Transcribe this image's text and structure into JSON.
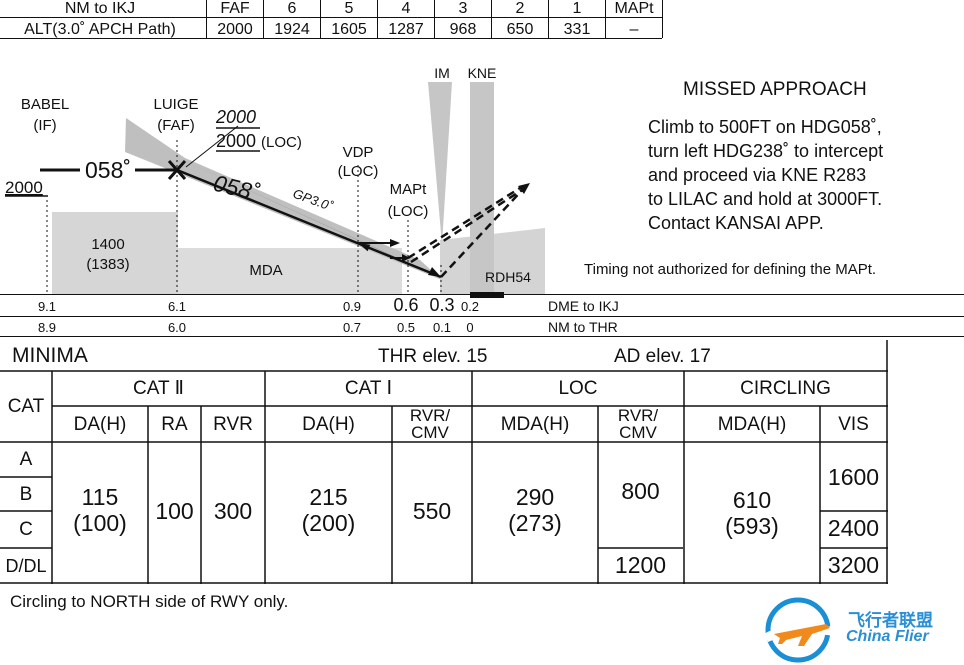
{
  "altitude_table": {
    "row1_label": "NM to IKJ",
    "row2_label": "ALT(3.0˚ APCH Path)",
    "columns": [
      {
        "head": "FAF",
        "alt": "2000"
      },
      {
        "head": "6",
        "alt": "1924"
      },
      {
        "head": "5",
        "alt": "1605"
      },
      {
        "head": "4",
        "alt": "1287"
      },
      {
        "head": "3",
        "alt": "968"
      },
      {
        "head": "2",
        "alt": "650"
      },
      {
        "head": "1",
        "alt": "331"
      },
      {
        "head": "MAPt",
        "alt": "–"
      }
    ]
  },
  "profile": {
    "im_label": "IM",
    "kne_label": "KNE",
    "babel_name": "BABEL",
    "babel_role": "(IF)",
    "babel_alt": "2000",
    "luige_name": "LUIGE",
    "luige_role": "(FAF)",
    "faf_alt": "2000",
    "faf_alt_loc": "2000",
    "loc_suffix": "(LOC)",
    "course_initial": "058˚",
    "course_final": "058˚",
    "glidepath": "GP3.0˚",
    "vdp_name": "VDP",
    "vdp_role": "(LOC)",
    "mapt_name": "MAPt",
    "mapt_role": "(LOC)",
    "terrain_alt": "1400",
    "terrain_hgt": "(1383)",
    "mda_label": "MDA",
    "rdh_label": "RDH54",
    "dme_values": [
      "9.1",
      "6.1",
      "0.9",
      "0.6",
      "0.3",
      "0.2"
    ],
    "dme_label": "DME to IKJ",
    "thr_values": [
      "8.9",
      "6.0",
      "0.7",
      "0.5",
      "0.1",
      "0"
    ],
    "thr_label": "NM to THR"
  },
  "missed_approach": {
    "title": "MISSED APPROACH",
    "lines": [
      "Climb to 500FT on HDG058˚,",
      "turn left HDG238˚ to intercept",
      "and proceed via KNE R283",
      "to LILAC and hold at 3000FT.",
      "Contact  KANSAI  APP."
    ],
    "timing_note": "Timing not authorized for defining the MAPt."
  },
  "minima": {
    "title": "MINIMA",
    "thr_elev": "THR elev. 15",
    "ad_elev": "AD elev. 17",
    "cat_header": "CAT",
    "groups": {
      "cat2": "CAT Ⅱ",
      "cat1": "CAT Ⅰ",
      "loc": "LOC",
      "circling": "CIRCLING"
    },
    "sub": {
      "da_h_2": "DA(H)",
      "ra": "RA",
      "rvr_2": "RVR",
      "da_h_1": "DA(H)",
      "rvr_cmv_1": "RVR/ CMV",
      "mda_h_loc": "MDA(H)",
      "rvr_cmv_loc": "RVR/ CMV",
      "mda_h_circ": "MDA(H)",
      "vis": "VIS"
    },
    "cats": [
      "A",
      "B",
      "C",
      "D/DL"
    ],
    "values": {
      "cat2_da": "115",
      "cat2_h": "(100)",
      "cat2_ra": "100",
      "cat2_rvr": "300",
      "cat1_da": "215",
      "cat1_h": "(200)",
      "cat1_rvr": "550",
      "loc_mda": "290",
      "loc_h": "(273)",
      "loc_rvr_abc": "800",
      "loc_rvr_d": "1200",
      "circ_mda": "610",
      "circ_h": "(593)",
      "vis_ab": "1600",
      "vis_c": "2400",
      "vis_d": "3200"
    },
    "note": "Circling to NORTH side of RWY only."
  },
  "watermark": {
    "cn": "飞行者联盟",
    "en": "China Flier"
  }
}
